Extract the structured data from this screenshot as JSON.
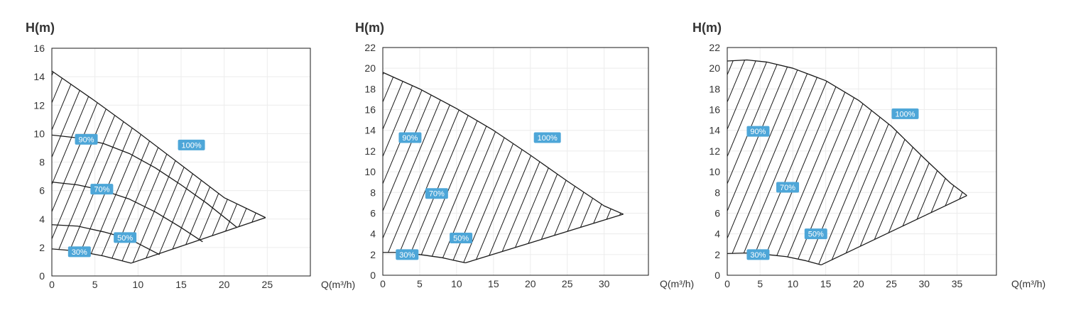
{
  "accent_color": "#4da6d8",
  "chart_data": [
    {
      "type": "area",
      "ylabel": "H(m)",
      "xlabel": "Q(m³/h)",
      "xlim": [
        0,
        30
      ],
      "ylim": [
        0,
        16
      ],
      "xticks": [
        "0",
        "5",
        "10",
        "15",
        "20",
        "25"
      ],
      "yticks": [
        "0",
        "2",
        "4",
        "6",
        "8",
        "10",
        "12",
        "14",
        "16"
      ],
      "grid": true,
      "region": "hatched operating range between 100% curve and minimum line",
      "series": [
        {
          "name": "100%",
          "x": [
            0,
            5,
            10,
            15,
            20,
            24.8
          ],
          "y": [
            14.4,
            12.3,
            10.1,
            7.8,
            5.5,
            4.1
          ]
        },
        {
          "name": "90%",
          "x": [
            0,
            3,
            6,
            9,
            12,
            15,
            18,
            21.5
          ],
          "y": [
            9.9,
            9.7,
            9.3,
            8.6,
            7.6,
            6.4,
            5.1,
            3.4
          ]
        },
        {
          "name": "70%",
          "x": [
            0,
            3,
            6,
            9,
            12,
            15,
            17.5
          ],
          "y": [
            6.6,
            6.4,
            6.0,
            5.4,
            4.5,
            3.4,
            2.4
          ]
        },
        {
          "name": "50%",
          "x": [
            0,
            3,
            6,
            9,
            12.5
          ],
          "y": [
            3.6,
            3.5,
            3.1,
            2.6,
            1.5
          ]
        },
        {
          "name": "30%",
          "x": [
            0,
            3,
            6,
            9.2
          ],
          "y": [
            1.9,
            1.75,
            1.4,
            0.9
          ]
        },
        {
          "name": "min",
          "x": [
            9.2,
            24.8
          ],
          "y": [
            0.9,
            4.1
          ]
        }
      ],
      "labels": [
        {
          "text": "100%",
          "x": 16.2,
          "y": 9.2
        },
        {
          "text": "90%",
          "x": 4.0,
          "y": 9.6
        },
        {
          "text": "70%",
          "x": 5.8,
          "y": 6.1
        },
        {
          "text": "50%",
          "x": 8.5,
          "y": 2.7
        },
        {
          "text": "30%",
          "x": 3.2,
          "y": 1.7
        }
      ]
    },
    {
      "type": "area",
      "ylabel": "H(m)",
      "xlabel": "Q(m³/h)",
      "xlim": [
        0,
        36
      ],
      "ylim": [
        0,
        22
      ],
      "xticks": [
        "0",
        "5",
        "10",
        "15",
        "20",
        "25",
        "30"
      ],
      "yticks": [
        "0",
        "2",
        "4",
        "6",
        "8",
        "10",
        "12",
        "14",
        "16",
        "18",
        "20",
        "22"
      ],
      "grid": true,
      "region": "hatched operating range between 100% curve and minimum line",
      "series": [
        {
          "name": "100%",
          "x": [
            0,
            5,
            10,
            15,
            20,
            25,
            30,
            32.6
          ],
          "y": [
            19.6,
            18.0,
            16.1,
            14.0,
            11.6,
            9.1,
            6.7,
            5.9
          ]
        },
        {
          "name": "30%",
          "x": [
            0,
            2,
            5,
            8,
            11.2
          ],
          "y": [
            2.2,
            2.2,
            2.0,
            1.7,
            1.2
          ]
        },
        {
          "name": "min",
          "x": [
            11.2,
            32.6
          ],
          "y": [
            1.2,
            5.9
          ]
        }
      ],
      "labels": [
        {
          "text": "100%",
          "x": 22.3,
          "y": 13.3
        },
        {
          "text": "90%",
          "x": 3.7,
          "y": 13.3
        },
        {
          "text": "70%",
          "x": 7.3,
          "y": 7.9
        },
        {
          "text": "50%",
          "x": 10.6,
          "y": 3.6
        },
        {
          "text": "30%",
          "x": 3.3,
          "y": 2.0
        }
      ]
    },
    {
      "type": "area",
      "ylabel": "H(m)",
      "xlabel": "Q(m³/h)",
      "xlim": [
        0,
        41
      ],
      "ylim": [
        0,
        22
      ],
      "xticks": [
        "0",
        "5",
        "10",
        "15",
        "20",
        "25",
        "30",
        "35"
      ],
      "yticks": [
        "0",
        "2",
        "4",
        "6",
        "8",
        "10",
        "12",
        "14",
        "16",
        "18",
        "20",
        "22"
      ],
      "grid": true,
      "region": "hatched operating range between 100% curve and minimum line",
      "series": [
        {
          "name": "100%",
          "x": [
            0,
            3,
            6,
            10,
            15,
            20,
            25,
            30,
            34,
            36.5
          ],
          "y": [
            20.7,
            20.8,
            20.6,
            20.0,
            18.8,
            16.9,
            14.4,
            11.3,
            8.9,
            7.7
          ]
        },
        {
          "name": "30%",
          "x": [
            0,
            3,
            6,
            9,
            12,
            14.3
          ],
          "y": [
            2.1,
            2.15,
            2.0,
            1.8,
            1.4,
            1.0
          ]
        },
        {
          "name": "min",
          "x": [
            14.3,
            36.5
          ],
          "y": [
            1.0,
            7.7
          ]
        }
      ],
      "labels": [
        {
          "text": "100%",
          "x": 27.1,
          "y": 15.6
        },
        {
          "text": "90%",
          "x": 4.7,
          "y": 13.9
        },
        {
          "text": "70%",
          "x": 9.2,
          "y": 8.5
        },
        {
          "text": "50%",
          "x": 13.5,
          "y": 4.0
        },
        {
          "text": "30%",
          "x": 4.7,
          "y": 2.0
        }
      ]
    }
  ]
}
